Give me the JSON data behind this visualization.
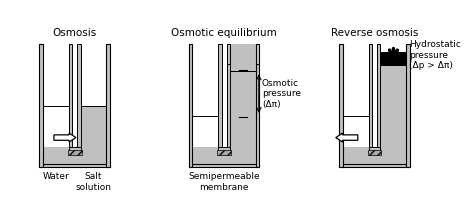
{
  "title_fontsize": 7.5,
  "label_fontsize": 6.5,
  "annotation_fontsize": 6.5,
  "gray_fill": "#c0c0c0",
  "white": "#ffffff",
  "black": "#000000",
  "titles": [
    "Osmosis",
    "Osmotic equilibrium",
    "Reverse osmosis"
  ],
  "osmotic_label": "Osmotic\npressure\n(Δπ)",
  "hydrostatic_label": "Hydrostatic\npressure\n(Δp > Δπ)",
  "water_label": "Water",
  "salt_label": "Salt\nsolution",
  "membrane_label": "Semipermeable\nmembrane",
  "panel_centers": [
    75,
    228,
    382
  ],
  "figsize": [
    4.74,
    2.1
  ],
  "dpi": 100
}
